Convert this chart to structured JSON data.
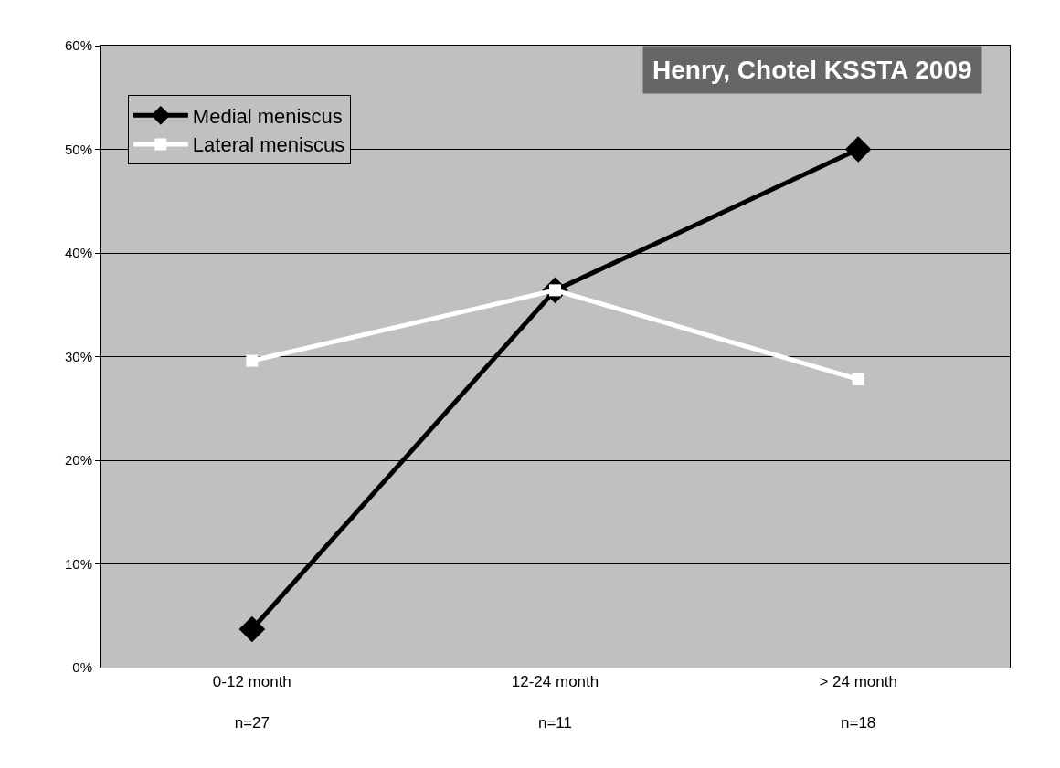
{
  "chart_data": {
    "type": "line",
    "title": "Henry, Chotel KSSTA 2009",
    "categories": [
      "0-12 month\nn=27",
      "12-24 month\nn=11",
      "> 24 month\nn=18"
    ],
    "series": [
      {
        "name": "Medial meniscus",
        "color": "#000000",
        "marker": "diamond",
        "values": [
          3.7,
          36.4,
          50
        ]
      },
      {
        "name": "Lateral meniscus",
        "color": "#ffffff",
        "marker": "square",
        "values": [
          29.6,
          36.4,
          27.8
        ]
      }
    ],
    "ylim": [
      0,
      60
    ],
    "yticks": [
      {
        "value": 0,
        "label": "0%"
      },
      {
        "value": 10,
        "label": "10%"
      },
      {
        "value": 20,
        "label": "20%"
      },
      {
        "value": 30,
        "label": "30%"
      },
      {
        "value": 40,
        "label": "40%"
      },
      {
        "value": 50,
        "label": "50%"
      },
      {
        "value": 60,
        "label": "60%"
      }
    ],
    "grid": "y",
    "legend": "top left",
    "line_style": "solid"
  }
}
